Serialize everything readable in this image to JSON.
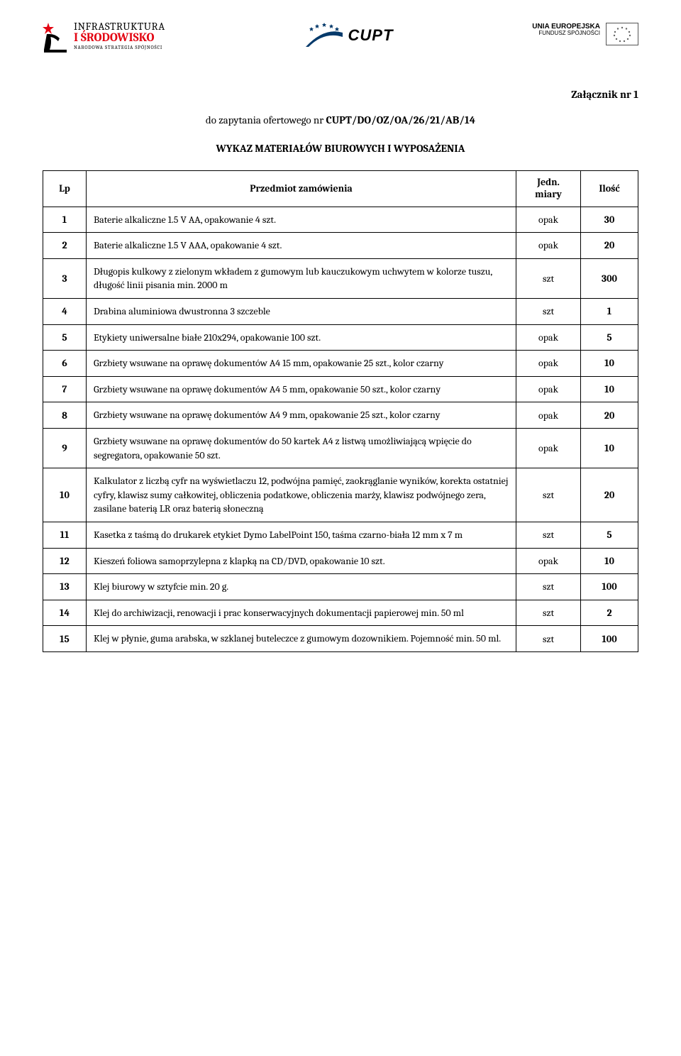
{
  "logos": {
    "left": {
      "line1": "INFRASTRUKTURA",
      "line2": "I ŚRODOWISKO",
      "line3": "NARODOWA STRATEGIA SPÓJNOŚCI"
    },
    "center": {
      "text": "CUPT"
    },
    "right": {
      "line1": "UNIA EUROPEJSKA",
      "line2": "FUNDUSZ SPÓJNOŚCI"
    }
  },
  "header": {
    "attachment": "Załącznik nr 1",
    "inquiry_prefix": "do zapytania ofertowego nr ",
    "inquiry_ref": "CUPT/DO/OZ/OA/26/21/AB/14",
    "list_title": "WYKAZ MATERIAŁÓW BIUROWYCH I WYPOSAŻENIA"
  },
  "table": {
    "columns": {
      "lp": "Lp",
      "item": "Przedmiot zamówienia",
      "unit": "Jedn. miary",
      "qty": "Ilość"
    },
    "rows": [
      {
        "n": "1",
        "desc": "Baterie alkaliczne 1.5 V AA, opakowanie 4 szt.",
        "unit": "opak",
        "qty": "30"
      },
      {
        "n": "2",
        "desc": "Baterie alkaliczne 1.5 V AAA, opakowanie 4 szt.",
        "unit": "opak",
        "qty": "20"
      },
      {
        "n": "3",
        "desc": "Długopis kulkowy z zielonym wkładem z gumowym lub kauczukowym uchwytem w kolorze tuszu, długość linii pisania min. 2000 m",
        "unit": "szt",
        "qty": "300"
      },
      {
        "n": "4",
        "desc": "Drabina aluminiowa dwustronna 3 szczeble",
        "unit": "szt",
        "qty": "1"
      },
      {
        "n": "5",
        "desc": "Etykiety uniwersalne białe 210x294, opakowanie 100 szt.",
        "unit": "opak",
        "qty": "5"
      },
      {
        "n": "6",
        "desc": "Grzbiety wsuwane na oprawę dokumentów A4 15 mm, opakowanie 25 szt., kolor czarny",
        "unit": "opak",
        "qty": "10"
      },
      {
        "n": "7",
        "desc": "Grzbiety wsuwane na oprawę dokumentów A4 5 mm, opakowanie 50 szt., kolor czarny",
        "unit": "opak",
        "qty": "10"
      },
      {
        "n": "8",
        "desc": "Grzbiety wsuwane na oprawę dokumentów A4 9 mm, opakowanie 25 szt., kolor czarny",
        "unit": "opak",
        "qty": "20"
      },
      {
        "n": "9",
        "desc": "Grzbiety wsuwane na oprawę dokumentów do 50 kartek A4 z listwą umożliwiającą wpięcie do segregatora, opakowanie 50 szt.",
        "unit": "opak",
        "qty": "10"
      },
      {
        "n": "10",
        "desc": "Kalkulator z liczbą cyfr na wyświetlaczu 12, podwójna pamięć, zaokrąglanie wyników, korekta ostatniej cyfry, klawisz sumy całkowitej, obliczenia podatkowe, obliczenia marży, klawisz podwójnego zera, zasilane baterią LR oraz baterią słoneczną",
        "unit": "szt",
        "qty": "20"
      },
      {
        "n": "11",
        "desc": "Kasetka z taśmą do drukarek etykiet Dymo LabelPoint 150, taśma czarno-biała 12 mm x 7 m",
        "unit": "szt",
        "qty": "5"
      },
      {
        "n": "12",
        "desc": "Kieszeń foliowa samoprzylepna z klapką na CD/DVD, opakowanie 10 szt.",
        "unit": "opak",
        "qty": "10"
      },
      {
        "n": "13",
        "desc": "Klej biurowy w sztyfcie min. 20 g.",
        "unit": "szt",
        "qty": "100"
      },
      {
        "n": "14",
        "desc": "Klej do archiwizacji, renowacji i prac konserwacyjnych dokumentacji papierowej min. 50 ml",
        "unit": "szt",
        "qty": "2"
      },
      {
        "n": "15",
        "desc": "Klej w płynie, guma arabska, w  szklanej buteleczce z gumowym dozownikiem. Pojemność min. 50 ml.",
        "unit": "szt",
        "qty": "100"
      }
    ]
  },
  "style": {
    "text_color": "#000000",
    "accent_red": "#e30613",
    "eu_blue": "#003399",
    "eu_gold": "#666666",
    "background": "#ffffff",
    "border": "#000000"
  }
}
